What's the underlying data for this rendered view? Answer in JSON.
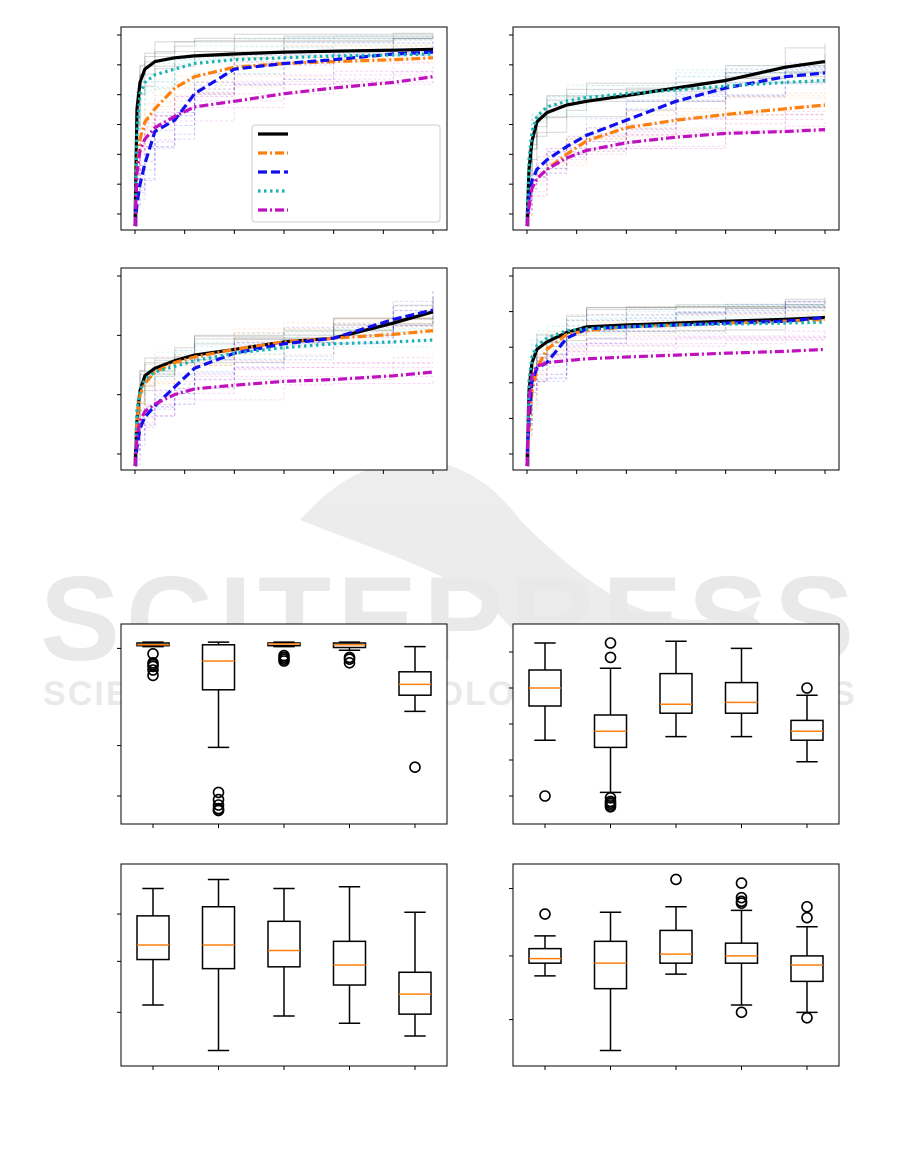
{
  "watermark": {
    "text_main": "SCITEPRESS",
    "text_sub": "SCIENCE AND TECHNOLOGY PUBLICATIONS"
  },
  "colors": {
    "black": "#000000",
    "orange": "#ff7f0e",
    "blue": "#1010ee",
    "cyan": "#17b3b3",
    "magenta": "#c010c0",
    "median": "#ff7f0e"
  },
  "chart_data": [
    {
      "type": "line",
      "x": [
        0,
        2,
        5,
        10,
        20,
        40,
        60,
        100,
        150,
        200,
        260,
        300
      ],
      "y_scale": "unlabeled 0-1",
      "legend_position": "lower-right",
      "series": [
        {
          "color": "#000000",
          "style": "solid",
          "values": [
            0.0,
            0.62,
            0.76,
            0.83,
            0.87,
            0.89,
            0.9,
            0.91,
            0.92,
            0.925,
            0.93,
            0.935
          ]
        },
        {
          "color": "#ff7f0e",
          "style": "dashdot",
          "values": [
            0.0,
            0.3,
            0.46,
            0.55,
            0.62,
            0.73,
            0.79,
            0.84,
            0.86,
            0.87,
            0.88,
            0.89
          ]
        },
        {
          "color": "#1010ee",
          "style": "dashed",
          "values": [
            0.0,
            0.12,
            0.22,
            0.33,
            0.5,
            0.56,
            0.7,
            0.83,
            0.86,
            0.88,
            0.91,
            0.92
          ]
        },
        {
          "color": "#17b3b3",
          "style": "dotted",
          "values": [
            0.0,
            0.5,
            0.7,
            0.76,
            0.8,
            0.83,
            0.86,
            0.88,
            0.89,
            0.9,
            0.905,
            0.91
          ]
        },
        {
          "color": "#c010c0",
          "style": "dashdot",
          "values": [
            0.0,
            0.28,
            0.4,
            0.46,
            0.52,
            0.58,
            0.63,
            0.66,
            0.7,
            0.73,
            0.76,
            0.79
          ]
        }
      ]
    },
    {
      "type": "line",
      "x": [
        0,
        2,
        5,
        10,
        20,
        40,
        60,
        100,
        150,
        200,
        260,
        300
      ],
      "y_scale": "unlabeled 0-1",
      "series": [
        {
          "color": "#000000",
          "style": "solid",
          "values": [
            0.0,
            0.3,
            0.45,
            0.55,
            0.6,
            0.64,
            0.66,
            0.69,
            0.73,
            0.77,
            0.84,
            0.87
          ]
        },
        {
          "color": "#ff7f0e",
          "style": "dashdot",
          "values": [
            0.0,
            0.12,
            0.2,
            0.25,
            0.3,
            0.38,
            0.45,
            0.52,
            0.56,
            0.59,
            0.62,
            0.64
          ]
        },
        {
          "color": "#1010ee",
          "style": "dashed",
          "values": [
            0.0,
            0.15,
            0.24,
            0.3,
            0.35,
            0.42,
            0.48,
            0.56,
            0.66,
            0.73,
            0.79,
            0.81
          ]
        },
        {
          "color": "#17b3b3",
          "style": "dotted",
          "values": [
            0.0,
            0.35,
            0.5,
            0.58,
            0.63,
            0.66,
            0.68,
            0.7,
            0.72,
            0.74,
            0.76,
            0.77
          ]
        },
        {
          "color": "#c010c0",
          "style": "dashdot",
          "values": [
            0.0,
            0.1,
            0.2,
            0.25,
            0.3,
            0.36,
            0.4,
            0.44,
            0.47,
            0.49,
            0.5,
            0.51
          ]
        }
      ]
    },
    {
      "type": "line",
      "x": [
        0,
        2,
        5,
        10,
        20,
        40,
        60,
        100,
        150,
        200,
        260,
        300
      ],
      "y_scale": "unlabeled 0-1",
      "series": [
        {
          "color": "#000000",
          "style": "solid",
          "values": [
            0.0,
            0.25,
            0.4,
            0.48,
            0.52,
            0.56,
            0.59,
            0.62,
            0.66,
            0.68,
            0.76,
            0.82
          ]
        },
        {
          "color": "#ff7f0e",
          "style": "dashdot",
          "values": [
            0.0,
            0.25,
            0.38,
            0.44,
            0.5,
            0.55,
            0.58,
            0.62,
            0.66,
            0.68,
            0.7,
            0.72
          ]
        },
        {
          "color": "#1010ee",
          "style": "dashed",
          "values": [
            0.0,
            0.1,
            0.2,
            0.26,
            0.32,
            0.42,
            0.52,
            0.6,
            0.65,
            0.68,
            0.78,
            0.83
          ]
        },
        {
          "color": "#17b3b3",
          "style": "dotted",
          "values": [
            0.0,
            0.3,
            0.4,
            0.46,
            0.5,
            0.53,
            0.56,
            0.6,
            0.63,
            0.65,
            0.66,
            0.67
          ]
        },
        {
          "color": "#c010c0",
          "style": "dashdot",
          "values": [
            0.0,
            0.15,
            0.24,
            0.29,
            0.33,
            0.38,
            0.41,
            0.43,
            0.45,
            0.46,
            0.48,
            0.5
          ]
        }
      ]
    },
    {
      "type": "line",
      "x": [
        0,
        2,
        5,
        10,
        20,
        40,
        60,
        100,
        150,
        200,
        260,
        300
      ],
      "y_scale": "unlabeled 0-1",
      "series": [
        {
          "color": "#000000",
          "style": "solid",
          "values": [
            0.0,
            0.4,
            0.55,
            0.62,
            0.66,
            0.71,
            0.74,
            0.75,
            0.76,
            0.77,
            0.78,
            0.79
          ]
        },
        {
          "color": "#ff7f0e",
          "style": "dashdot",
          "values": [
            0.0,
            0.2,
            0.4,
            0.52,
            0.62,
            0.7,
            0.72,
            0.74,
            0.75,
            0.76,
            0.77,
            0.78
          ]
        },
        {
          "color": "#1010ee",
          "style": "dashed",
          "values": [
            0.0,
            0.25,
            0.45,
            0.52,
            0.55,
            0.68,
            0.73,
            0.74,
            0.75,
            0.76,
            0.77,
            0.79
          ]
        },
        {
          "color": "#17b3b3",
          "style": "dotted",
          "values": [
            0.0,
            0.45,
            0.58,
            0.64,
            0.68,
            0.72,
            0.73,
            0.74,
            0.75,
            0.755,
            0.76,
            0.765
          ]
        },
        {
          "color": "#c010c0",
          "style": "dashdot",
          "values": [
            0.0,
            0.35,
            0.48,
            0.53,
            0.55,
            0.56,
            0.57,
            0.58,
            0.59,
            0.6,
            0.61,
            0.62
          ]
        }
      ]
    },
    {
      "type": "box",
      "y_range": [
        0,
        1
      ],
      "boxes": [
        {
          "whislo": 0.93,
          "q1": 0.935,
          "med": 0.94,
          "q3": 0.95,
          "whishi": 0.955,
          "fliers": [
            0.89,
            0.84,
            0.82,
            0.8,
            0.77,
            0.83
          ]
        },
        {
          "whislo": 0.37,
          "q1": 0.69,
          "med": 0.85,
          "q3": 0.94,
          "whishi": 0.955,
          "fliers": [
            0.05,
            0.03,
            0.02,
            0.08,
            0.12,
            0.02
          ]
        },
        {
          "whislo": 0.93,
          "q1": 0.935,
          "med": 0.945,
          "q3": 0.95,
          "whishi": 0.955,
          "fliers": [
            0.88,
            0.87,
            0.86,
            0.85
          ]
        },
        {
          "whislo": 0.91,
          "q1": 0.925,
          "med": 0.94,
          "q3": 0.95,
          "whishi": 0.955,
          "fliers": [
            0.87,
            0.86,
            0.84
          ]
        },
        {
          "whislo": 0.57,
          "q1": 0.66,
          "med": 0.72,
          "q3": 0.79,
          "whishi": 0.93,
          "fliers": [
            0.26
          ]
        }
      ]
    },
    {
      "type": "box",
      "y_range": [
        0,
        1
      ],
      "boxes": [
        {
          "whislo": 0.41,
          "q1": 0.6,
          "med": 0.7,
          "q3": 0.8,
          "whishi": 0.95,
          "fliers": [
            0.1
          ]
        },
        {
          "whislo": 0.12,
          "q1": 0.37,
          "med": 0.46,
          "q3": 0.55,
          "whishi": 0.81,
          "fliers": [
            0.95,
            0.87,
            0.09,
            0.07,
            0.06,
            0.05,
            0.04
          ]
        },
        {
          "whislo": 0.43,
          "q1": 0.56,
          "med": 0.61,
          "q3": 0.78,
          "whishi": 0.96,
          "fliers": []
        },
        {
          "whislo": 0.43,
          "q1": 0.56,
          "med": 0.62,
          "q3": 0.73,
          "whishi": 0.92,
          "fliers": []
        },
        {
          "whislo": 0.29,
          "q1": 0.41,
          "med": 0.46,
          "q3": 0.52,
          "whishi": 0.66,
          "fliers": [
            0.7
          ]
        }
      ]
    },
    {
      "type": "box",
      "y_range": [
        0,
        1
      ],
      "boxes": [
        {
          "whislo": 0.28,
          "q1": 0.53,
          "med": 0.61,
          "q3": 0.77,
          "whishi": 0.92,
          "fliers": []
        },
        {
          "whislo": 0.03,
          "q1": 0.48,
          "med": 0.61,
          "q3": 0.82,
          "whishi": 0.97,
          "fliers": []
        },
        {
          "whislo": 0.22,
          "q1": 0.49,
          "med": 0.58,
          "q3": 0.74,
          "whishi": 0.92,
          "fliers": []
        },
        {
          "whislo": 0.18,
          "q1": 0.39,
          "med": 0.5,
          "q3": 0.63,
          "whishi": 0.93,
          "fliers": []
        },
        {
          "whislo": 0.11,
          "q1": 0.23,
          "med": 0.34,
          "q3": 0.46,
          "whishi": 0.79,
          "fliers": []
        }
      ]
    },
    {
      "type": "box",
      "y_range": [
        0,
        1
      ],
      "boxes": [
        {
          "whislo": 0.44,
          "q1": 0.51,
          "med": 0.535,
          "q3": 0.59,
          "whishi": 0.66,
          "fliers": [
            0.78
          ]
        },
        {
          "whislo": 0.03,
          "q1": 0.37,
          "med": 0.51,
          "q3": 0.63,
          "whishi": 0.79,
          "fliers": []
        },
        {
          "whislo": 0.45,
          "q1": 0.51,
          "med": 0.56,
          "q3": 0.69,
          "whishi": 0.82,
          "fliers": [
            0.97
          ]
        },
        {
          "whislo": 0.28,
          "q1": 0.51,
          "med": 0.55,
          "q3": 0.62,
          "whishi": 0.8,
          "fliers": [
            0.95,
            0.87,
            0.85,
            0.84,
            0.24
          ]
        },
        {
          "whislo": 0.24,
          "q1": 0.41,
          "med": 0.5,
          "q3": 0.55,
          "whishi": 0.71,
          "fliers": [
            0.82,
            0.76,
            0.21
          ]
        }
      ]
    }
  ]
}
